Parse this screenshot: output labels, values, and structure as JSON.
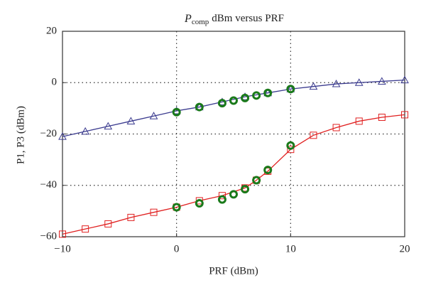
{
  "chart_data": {
    "type": "line",
    "title_symbol": "P",
    "title_subscript": "comp",
    "title": "dBm versus PRF",
    "x_label": "PRF (dBm)",
    "y_label": "P1, P3 (dBm)",
    "xlim": [
      -10,
      20
    ],
    "ylim": [
      -60,
      20
    ],
    "xticks": [
      {
        "value": -10,
        "label": "−10"
      },
      0,
      10,
      20
    ],
    "yticks": [
      {
        "value": -60,
        "label": "−60"
      },
      {
        "value": -40,
        "label": "−40"
      },
      {
        "value": -20,
        "label": "−20"
      },
      0,
      20
    ],
    "grid": true,
    "series": [
      {
        "color": "#3b3b8f",
        "marker": "triangle",
        "line": true,
        "x": [
          -10,
          -8,
          -6,
          -4,
          -2,
          0,
          2,
          4,
          6,
          8,
          10,
          12,
          14,
          16,
          18,
          20
        ],
        "values": [
          -21,
          -19,
          -17,
          -15,
          -13,
          -11,
          -9.5,
          -7.5,
          -5.5,
          -4,
          -2.5,
          -1.5,
          -0.5,
          0,
          0.5,
          1
        ]
      },
      {
        "color": "#e02020",
        "marker": "square",
        "line": true,
        "x": [
          -10,
          -8,
          -6,
          -4,
          -2,
          0,
          2,
          4,
          6,
          7,
          8,
          10,
          12,
          14,
          16,
          18,
          20
        ],
        "values": [
          -59,
          -57,
          -55,
          -52.5,
          -50.5,
          -48.5,
          -46,
          -44,
          -41,
          -38,
          -34.5,
          -26,
          -20.5,
          -17.5,
          -15,
          -13.5,
          -12.5
        ]
      },
      {
        "color": "#1a7a1a",
        "marker": "circle",
        "line": false,
        "x": [
          0,
          2,
          4,
          5,
          6,
          7,
          8,
          10
        ],
        "values": [
          -11.5,
          -9.5,
          -8,
          -7,
          -6,
          -5,
          -4,
          -2.5
        ]
      },
      {
        "color": "#1a7a1a",
        "marker": "circle",
        "line": false,
        "x": [
          0,
          2,
          4,
          5,
          6,
          7,
          8,
          10
        ],
        "values": [
          -48.5,
          -47,
          -45.5,
          -43.5,
          -41.5,
          -38,
          -34,
          -24.5
        ]
      }
    ]
  }
}
